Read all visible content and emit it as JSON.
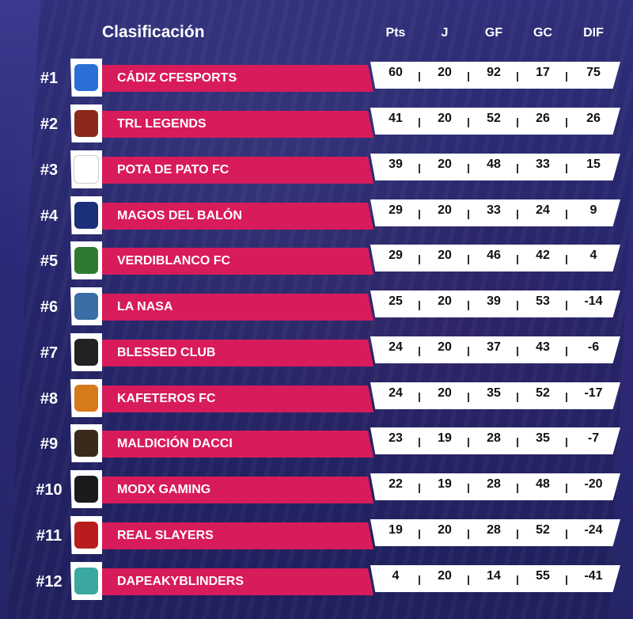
{
  "header": {
    "title": "Clasificación",
    "columns": [
      "Pts",
      "J",
      "GF",
      "GC",
      "DIF"
    ]
  },
  "colors": {
    "name_bar": "#d81b5a",
    "stats_bar": "#ffffff",
    "background": "#2a2a78"
  },
  "rows": [
    {
      "rank": "#1",
      "name": "CÁDIZ CFESPORTS",
      "pts": "60",
      "j": "20",
      "gf": "92",
      "gc": "17",
      "dif": "75",
      "logo_color": "#2a6fd6",
      "logo_icon": "cadiz-crest-icon"
    },
    {
      "rank": "#2",
      "name": "TRL LEGENDS",
      "pts": "41",
      "j": "20",
      "gf": "52",
      "gc": "26",
      "dif": "26",
      "logo_color": "#8b2a1a",
      "logo_icon": "trl-legends-crest-icon"
    },
    {
      "rank": "#3",
      "name": "POTA DE PATO FC",
      "pts": "39",
      "j": "20",
      "gf": "48",
      "gc": "33",
      "dif": "15",
      "logo_color": "#ffffff",
      "logo_icon": "pota-de-pato-crest-icon"
    },
    {
      "rank": "#4",
      "name": "MAGOS DEL BALÓN",
      "pts": "29",
      "j": "20",
      "gf": "33",
      "gc": "24",
      "dif": "9",
      "logo_color": "#1c2f7a",
      "logo_icon": "magos-crest-icon"
    },
    {
      "rank": "#5",
      "name": "VERDIBLANCO FC",
      "pts": "29",
      "j": "20",
      "gf": "46",
      "gc": "42",
      "dif": "4",
      "logo_color": "#2f7a32",
      "logo_icon": "verdiblanco-crest-icon"
    },
    {
      "rank": "#6",
      "name": "LA NASA",
      "pts": "25",
      "j": "20",
      "gf": "39",
      "gc": "53",
      "dif": "-14",
      "logo_color": "#3a6ea5",
      "logo_icon": "la-nasa-crest-icon"
    },
    {
      "rank": "#7",
      "name": "BLESSED CLUB",
      "pts": "24",
      "j": "20",
      "gf": "37",
      "gc": "43",
      "dif": "-6",
      "logo_color": "#222222",
      "logo_icon": "blessed-club-crest-icon"
    },
    {
      "rank": "#8",
      "name": "KAFETEROS FC",
      "pts": "24",
      "j": "20",
      "gf": "35",
      "gc": "52",
      "dif": "-17",
      "logo_color": "#d67a1a",
      "logo_icon": "kafeteros-crest-icon"
    },
    {
      "rank": "#9",
      "name": "MALDICIÓN DACCI",
      "pts": "23",
      "j": "19",
      "gf": "28",
      "gc": "35",
      "dif": "-7",
      "logo_color": "#3a2a1a",
      "logo_icon": "dacci-crest-icon"
    },
    {
      "rank": "#10",
      "name": "MODX GAMING",
      "pts": "22",
      "j": "19",
      "gf": "28",
      "gc": "48",
      "dif": "-20",
      "logo_color": "#1a1a1a",
      "logo_icon": "modx-crest-icon"
    },
    {
      "rank": "#11",
      "name": "REAL SLAYERS",
      "pts": "19",
      "j": "20",
      "gf": "28",
      "gc": "52",
      "dif": "-24",
      "logo_color": "#b81c1c",
      "logo_icon": "real-slayers-crest-icon"
    },
    {
      "rank": "#12",
      "name": "DAPEAKYBLINDERS",
      "pts": "4",
      "j": "20",
      "gf": "14",
      "gc": "55",
      "dif": "-41",
      "logo_color": "#3aa8a0",
      "logo_icon": "dapeakyblinders-crest-icon"
    }
  ]
}
